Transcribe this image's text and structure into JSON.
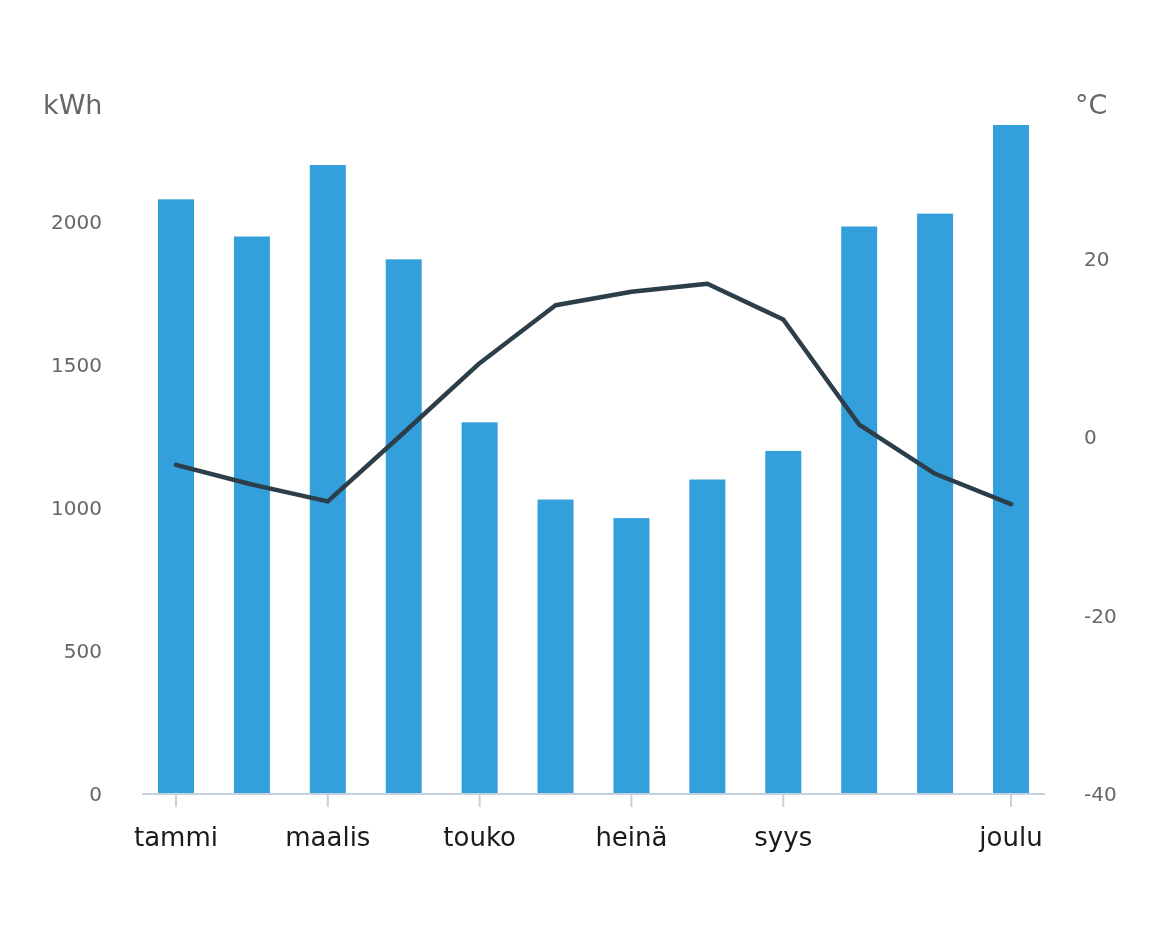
{
  "chart_data": {
    "type": "bar",
    "ylabel": "kWh",
    "y2label": "°C",
    "categories": [
      "tammi",
      null,
      "maalis",
      null,
      "touko",
      null,
      "heinä",
      null,
      "syys",
      null,
      null,
      "joulu"
    ],
    "ylim": [
      0,
      2340
    ],
    "yticks": [
      0,
      500,
      1000,
      1500,
      2000
    ],
    "y2lim": [
      -40,
      35
    ],
    "y2ticks": [
      -40,
      -20,
      0,
      20
    ],
    "series": [
      {
        "color": "#34a0db",
        "values": [
          2080,
          1950,
          2200,
          1870,
          1300,
          1030,
          965,
          1100,
          1200,
          1985,
          2030,
          2340
        ]
      },
      {
        "type": "line",
        "axis": "y2",
        "color": "#2c3e4a",
        "values": [
          -3.1,
          -5.3,
          -7.2,
          0.5,
          8.3,
          14.8,
          16.3,
          17.2,
          13.2,
          1.4,
          -4.1,
          -7.5
        ]
      }
    ]
  }
}
